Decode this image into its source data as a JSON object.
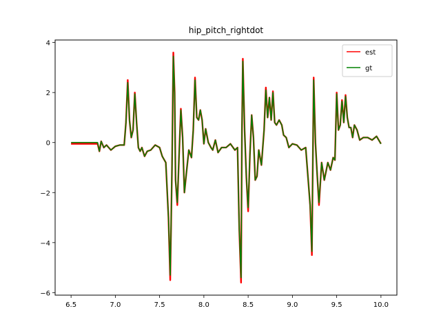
{
  "chart_data": {
    "type": "line",
    "title": "hip_pitch_rightdot",
    "xlabel": "",
    "ylabel": "",
    "xlim": [
      6.32,
      10.18
    ],
    "ylim": [
      -6.1,
      4.1
    ],
    "xticks": [
      6.5,
      7.0,
      7.5,
      8.0,
      8.5,
      9.0,
      9.5,
      10.0
    ],
    "xtick_labels": [
      "6.5",
      "7.0",
      "7.5",
      "8.0",
      "8.5",
      "9.0",
      "9.5",
      "10.0"
    ],
    "yticks": [
      4,
      2,
      0,
      -2,
      -4,
      -6
    ],
    "ytick_labels": [
      "4",
      "2",
      "0",
      "−2",
      "−4",
      "−6"
    ],
    "legend_position": "top-right",
    "colors": {
      "est": "#ff0000",
      "gt": "#008000"
    },
    "series": [
      {
        "name": "est",
        "x": [
          6.5,
          6.8,
          6.82,
          6.84,
          6.87,
          6.9,
          6.95,
          7.0,
          7.05,
          7.1,
          7.12,
          7.14,
          7.16,
          7.18,
          7.2,
          7.22,
          7.24,
          7.26,
          7.28,
          7.3,
          7.33,
          7.36,
          7.4,
          7.45,
          7.5,
          7.53,
          7.57,
          7.6,
          7.62,
          7.64,
          7.655,
          7.67,
          7.68,
          7.7,
          7.72,
          7.74,
          7.76,
          7.78,
          7.8,
          7.83,
          7.86,
          7.88,
          7.9,
          7.92,
          7.94,
          7.96,
          7.98,
          8.0,
          8.02,
          8.05,
          8.08,
          8.1,
          8.13,
          8.16,
          8.2,
          8.25,
          8.3,
          8.35,
          8.38,
          8.4,
          8.42,
          8.43,
          8.44,
          8.46,
          8.48,
          8.5,
          8.52,
          8.54,
          8.56,
          8.58,
          8.6,
          8.62,
          8.65,
          8.68,
          8.7,
          8.72,
          8.74,
          8.76,
          8.78,
          8.8,
          8.82,
          8.85,
          8.88,
          8.9,
          8.93,
          8.96,
          9.0,
          9.05,
          9.1,
          9.15,
          9.2,
          9.22,
          9.24,
          9.26,
          9.28,
          9.3,
          9.33,
          9.36,
          9.4,
          9.43,
          9.46,
          9.48,
          9.5,
          9.52,
          9.54,
          9.56,
          9.58,
          9.6,
          9.62,
          9.64,
          9.66,
          9.68,
          9.7,
          9.73,
          9.76,
          9.8,
          9.85,
          9.9,
          9.95,
          10.0
        ],
        "y": [
          -0.05,
          -0.05,
          -0.35,
          0.05,
          -0.2,
          -0.1,
          -0.3,
          -0.15,
          -0.1,
          -0.1,
          0.8,
          2.5,
          0.9,
          0.2,
          0.5,
          2.0,
          0.8,
          -0.2,
          -0.35,
          -0.2,
          -0.55,
          -0.35,
          -0.3,
          -0.1,
          -0.2,
          -0.55,
          -0.8,
          -3.0,
          -5.5,
          -1.0,
          3.6,
          2.0,
          -1.5,
          -2.5,
          -0.5,
          1.35,
          0.2,
          -2.0,
          -1.3,
          -0.3,
          -0.6,
          0.5,
          2.6,
          1.0,
          0.9,
          1.3,
          0.9,
          -0.05,
          0.55,
          0.0,
          -0.2,
          -0.3,
          0.1,
          -0.4,
          -0.2,
          -0.2,
          -0.05,
          -0.3,
          -0.2,
          -3.5,
          -5.6,
          0.5,
          3.35,
          0.5,
          -1.4,
          -2.75,
          -0.5,
          1.1,
          0.2,
          -1.5,
          -1.35,
          -0.3,
          -0.9,
          0.5,
          2.2,
          1.0,
          1.8,
          0.9,
          2.05,
          0.8,
          0.7,
          0.9,
          0.7,
          0.3,
          0.2,
          -0.2,
          -0.05,
          -0.1,
          -0.3,
          -0.2,
          -2.5,
          -4.5,
          2.6,
          0.0,
          -1.3,
          -2.5,
          -0.8,
          -1.5,
          -0.8,
          -1.1,
          -0.6,
          -0.7,
          2.0,
          0.5,
          0.7,
          1.7,
          0.8,
          1.9,
          1.0,
          0.6,
          0.6,
          0.2,
          0.7,
          0.5,
          0.1,
          0.2,
          0.2,
          0.1,
          0.25,
          -0.05
        ]
      },
      {
        "name": "gt",
        "x": [
          6.5,
          6.8,
          6.82,
          6.84,
          6.87,
          6.9,
          6.95,
          7.0,
          7.05,
          7.1,
          7.12,
          7.14,
          7.16,
          7.18,
          7.2,
          7.22,
          7.24,
          7.26,
          7.28,
          7.3,
          7.33,
          7.36,
          7.4,
          7.45,
          7.5,
          7.53,
          7.57,
          7.6,
          7.62,
          7.64,
          7.655,
          7.67,
          7.68,
          7.7,
          7.72,
          7.74,
          7.76,
          7.78,
          7.8,
          7.83,
          7.86,
          7.88,
          7.9,
          7.92,
          7.94,
          7.96,
          7.98,
          8.0,
          8.02,
          8.05,
          8.08,
          8.1,
          8.13,
          8.16,
          8.2,
          8.25,
          8.3,
          8.35,
          8.38,
          8.4,
          8.42,
          8.43,
          8.44,
          8.46,
          8.48,
          8.5,
          8.52,
          8.54,
          8.56,
          8.58,
          8.6,
          8.62,
          8.65,
          8.68,
          8.7,
          8.72,
          8.74,
          8.76,
          8.78,
          8.8,
          8.82,
          8.85,
          8.88,
          8.9,
          8.93,
          8.96,
          9.0,
          9.05,
          9.1,
          9.15,
          9.2,
          9.22,
          9.24,
          9.26,
          9.28,
          9.3,
          9.33,
          9.36,
          9.4,
          9.43,
          9.46,
          9.48,
          9.5,
          9.52,
          9.54,
          9.56,
          9.58,
          9.6,
          9.62,
          9.64,
          9.66,
          9.68,
          9.7,
          9.73,
          9.76,
          9.8,
          9.85,
          9.9,
          9.95,
          10.0
        ],
        "y": [
          0.0,
          0.0,
          -0.35,
          0.05,
          -0.2,
          -0.1,
          -0.3,
          -0.15,
          -0.1,
          -0.1,
          0.8,
          2.4,
          0.9,
          0.2,
          0.5,
          1.95,
          0.8,
          -0.2,
          -0.35,
          -0.2,
          -0.55,
          -0.35,
          -0.3,
          -0.1,
          -0.2,
          -0.55,
          -0.8,
          -3.0,
          -5.3,
          -1.0,
          3.45,
          2.0,
          -1.5,
          -2.4,
          -0.5,
          1.3,
          0.2,
          -2.0,
          -1.3,
          -0.3,
          -0.6,
          0.5,
          2.5,
          1.0,
          0.9,
          1.3,
          0.9,
          -0.05,
          0.55,
          0.0,
          -0.2,
          -0.3,
          0.1,
          -0.4,
          -0.2,
          -0.2,
          -0.05,
          -0.3,
          -0.2,
          -3.5,
          -5.4,
          0.5,
          3.25,
          0.5,
          -1.4,
          -2.6,
          -0.5,
          1.1,
          0.2,
          -1.5,
          -1.35,
          -0.3,
          -0.9,
          0.5,
          2.1,
          1.0,
          1.8,
          0.9,
          2.0,
          0.8,
          0.7,
          0.9,
          0.7,
          0.3,
          0.2,
          -0.2,
          -0.05,
          -0.1,
          -0.3,
          -0.2,
          -2.5,
          -4.35,
          2.5,
          0.0,
          -1.3,
          -2.4,
          -0.8,
          -1.5,
          -0.8,
          -1.1,
          -0.6,
          -0.7,
          1.95,
          0.5,
          0.7,
          1.65,
          0.8,
          1.85,
          1.0,
          0.6,
          0.6,
          0.2,
          0.7,
          0.5,
          0.1,
          0.2,
          0.2,
          0.1,
          0.25,
          -0.05
        ]
      }
    ]
  }
}
